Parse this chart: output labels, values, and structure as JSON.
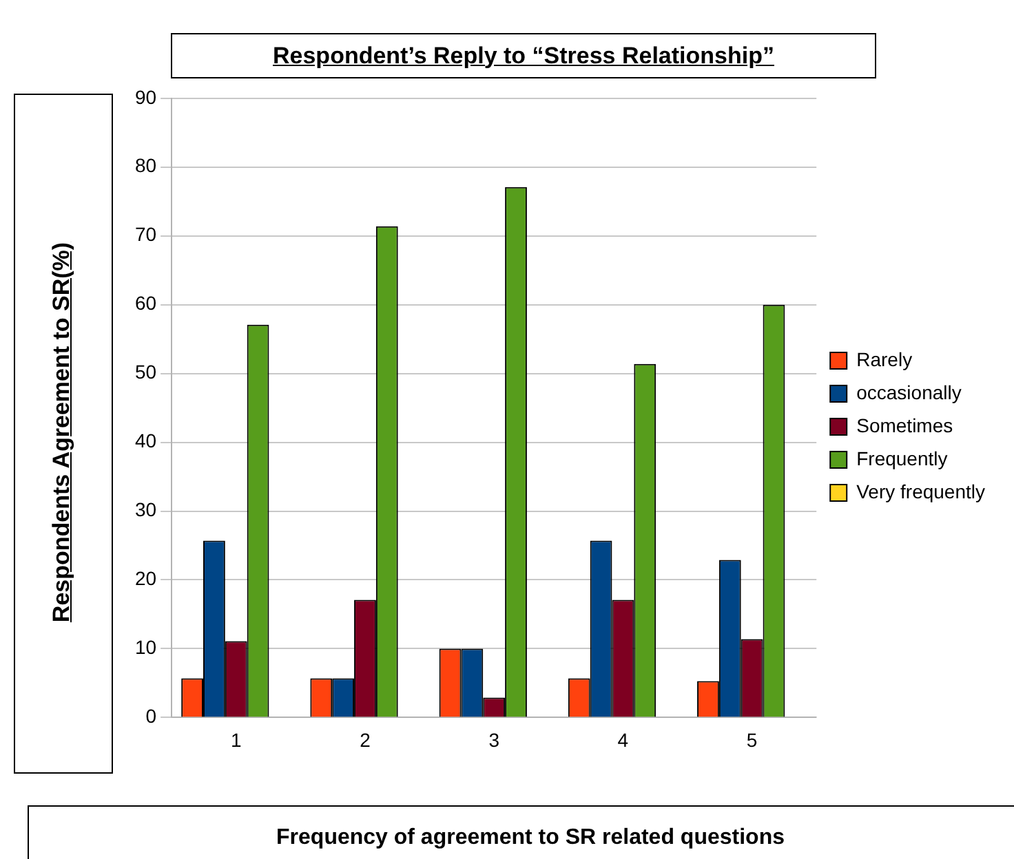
{
  "chart_data": {
    "type": "bar",
    "title": "Respondent’s Reply to  “Stress Relationship”",
    "xlabel": "Frequency of agreement to SR related questions",
    "ylabel": "Respondents Agreement to SR(%)",
    "categories": [
      "1",
      "2",
      "3",
      "4",
      "5"
    ],
    "series": [
      {
        "name": "Rarely",
        "color": "#ff420e",
        "values": [
          5.7,
          5.7,
          10,
          5.7,
          5.3
        ]
      },
      {
        "name": "occasionally",
        "color": "#004586",
        "values": [
          25.7,
          5.7,
          10,
          25.7,
          22.9
        ]
      },
      {
        "name": "Sometimes",
        "color": "#7e0021",
        "values": [
          11.1,
          17.1,
          2.9,
          17.1,
          11.4
        ]
      },
      {
        "name": "Frequently",
        "color": "#579d1c",
        "values": [
          57.1,
          71.4,
          77.1,
          51.4,
          60
        ]
      },
      {
        "name": "Very frequently",
        "color": "#ffd320",
        "values": [
          0,
          0,
          0,
          0,
          0
        ]
      }
    ],
    "ylim": [
      0,
      90
    ],
    "yticks": [
      0,
      10,
      20,
      30,
      40,
      50,
      60,
      70,
      80,
      90
    ],
    "grid": "y",
    "legend": "right"
  }
}
